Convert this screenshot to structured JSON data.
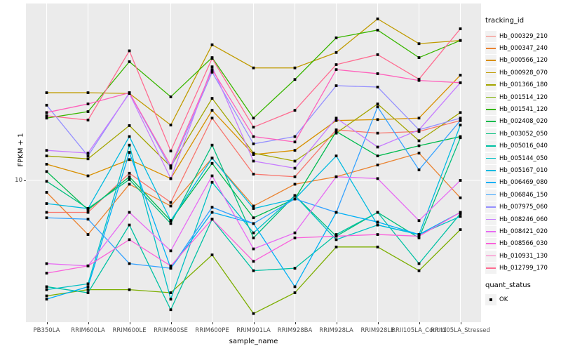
{
  "chart_data": {
    "type": "line",
    "title": "",
    "xlabel": "sample_name",
    "ylabel": "FPKM + 1",
    "y_scale": "log10",
    "y_tick_label": "10",
    "y_tick_value": 10,
    "ylim": [
      2.2,
      66
    ],
    "grid": "vertical-per-category-plus-y10",
    "panel_bg": "#EBEBEB",
    "grid_color": "#FFFFFF",
    "point_color": "#000000",
    "point_shape": "square",
    "legend": {
      "position": "right",
      "color_title": "tracking_id",
      "shape_title": "quant_status",
      "shape_items": [
        "OK"
      ]
    },
    "categories": [
      "PB350LA",
      "RRIM600LA",
      "RRIM600LE",
      "RRIM600SE",
      "RRIM600PE",
      "RRIM901LA",
      "RRIM928BA",
      "RRIM928LA",
      "RRIM928LE",
      "RRII105LA_Control",
      "RRII105LA_Stressed"
    ],
    "series": [
      {
        "name": "Hb_000329_210",
        "color": "#F8766D",
        "values": [
          7.1,
          7.1,
          10.8,
          7.9,
          19.5,
          10.7,
          10.4,
          17.2,
          16.6,
          16.9,
          19.0
        ]
      },
      {
        "name": "Hb_000347_240",
        "color": "#EA8331",
        "values": [
          8.8,
          5.6,
          9.6,
          7.6,
          12.7,
          7.6,
          9.6,
          10.4,
          11.8,
          13.4,
          8.3
        ]
      },
      {
        "name": "Hb_000566_120",
        "color": "#D89000",
        "values": [
          11.9,
          10.5,
          12.5,
          10.2,
          21.2,
          13.2,
          13.8,
          19.0,
          19.2,
          19.5,
          30.9
        ]
      },
      {
        "name": "Hb_000928_070",
        "color": "#C09B00",
        "values": [
          25.6,
          25.6,
          25.4,
          18.1,
          42.8,
          33.4,
          33.4,
          39.4,
          56.5,
          43.3,
          44.8
        ]
      },
      {
        "name": "Hb_001366_180",
        "color": "#A3A500",
        "values": [
          13.0,
          12.6,
          18.0,
          11.6,
          24.1,
          13.4,
          12.3,
          16.6,
          22.7,
          15.3,
          20.7
        ]
      },
      {
        "name": "Hb_001514_120",
        "color": "#7CAE00",
        "values": [
          2.9,
          3.1,
          3.1,
          3.0,
          4.5,
          2.4,
          3.0,
          4.9,
          4.9,
          3.8,
          5.9
        ]
      },
      {
        "name": "Hb_001541_120",
        "color": "#39B600",
        "values": [
          19.5,
          20.9,
          35.7,
          24.5,
          37.3,
          19.5,
          29.5,
          46.1,
          50.1,
          37.3,
          44.8
        ]
      },
      {
        "name": "Hb_002408_020",
        "color": "#00BB4E",
        "values": [
          11.0,
          7.3,
          10.4,
          6.5,
          12.0,
          6.7,
          8.2,
          16.9,
          13.0,
          14.5,
          16.0
        ]
      },
      {
        "name": "Hb_003052_050",
        "color": "#00BF7D",
        "values": [
          9.9,
          7.4,
          10.1,
          6.3,
          14.6,
          5.4,
          8.5,
          5.5,
          7.1,
          5.4,
          15.8
        ]
      },
      {
        "name": "Hb_005016_040",
        "color": "#00C1A3",
        "values": [
          3.2,
          3.0,
          6.2,
          2.5,
          6.6,
          3.8,
          3.9,
          5.6,
          7.1,
          4.1,
          7.0
        ]
      },
      {
        "name": "Hb_005144_050",
        "color": "#00BFC4",
        "values": [
          3.1,
          3.3,
          14.6,
          2.8,
          9.8,
          5.7,
          8.5,
          5.3,
          6.2,
          5.6,
          6.8
        ]
      },
      {
        "name": "Hb_005167_010",
        "color": "#00BAE0",
        "values": [
          7.8,
          7.4,
          16.0,
          6.5,
          12.7,
          7.4,
          8.2,
          13.0,
          6.2,
          5.6,
          18.1
        ]
      },
      {
        "name": "Hb_006469_080",
        "color": "#00B0F6",
        "values": [
          2.8,
          3.2,
          13.5,
          3.9,
          7.1,
          6.3,
          3.2,
          7.1,
          6.4,
          5.6,
          7.1
        ]
      },
      {
        "name": "Hb_006846_150",
        "color": "#35A2FF",
        "values": [
          6.7,
          6.6,
          4.1,
          3.9,
          7.5,
          6.3,
          8.2,
          7.1,
          22.0,
          11.2,
          19.0
        ]
      },
      {
        "name": "Hb_007975_060",
        "color": "#9590FF",
        "values": [
          22.4,
          13.0,
          25.6,
          11.4,
          31.9,
          14.8,
          16.0,
          27.6,
          27.2,
          17.2,
          19.5
        ]
      },
      {
        "name": "Hb_008246_060",
        "color": "#C77CFF",
        "values": [
          13.8,
          13.4,
          25.4,
          10.2,
          33.8,
          12.3,
          11.4,
          19.5,
          14.3,
          17.2,
          28.5
        ]
      },
      {
        "name": "Hb_008421_020",
        "color": "#E76BF3",
        "values": [
          4.1,
          4.0,
          7.1,
          4.7,
          10.5,
          4.8,
          5.7,
          10.4,
          10.2,
          6.5,
          10.0
        ]
      },
      {
        "name": "Hb_008566_030",
        "color": "#FA62DB",
        "values": [
          3.7,
          4.0,
          5.3,
          4.0,
          6.6,
          4.2,
          5.4,
          5.5,
          5.6,
          5.5,
          7.1
        ]
      },
      {
        "name": "Hb_010931_130",
        "color": "#FF62BC",
        "values": [
          20.7,
          22.7,
          25.6,
          11.7,
          32.8,
          16.0,
          15.1,
          32.8,
          31.4,
          29.2,
          28.5
        ]
      },
      {
        "name": "Hb_012799_170",
        "color": "#FF6C91",
        "values": [
          20.0,
          19.1,
          40.1,
          13.7,
          37.0,
          17.7,
          21.2,
          34.6,
          38.5,
          29.6,
          50.8
        ]
      }
    ]
  }
}
